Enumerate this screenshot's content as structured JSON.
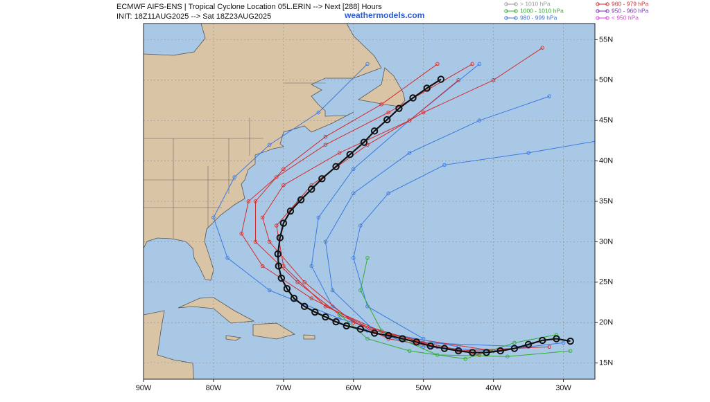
{
  "header": {
    "title": "ECMWF AIFS-ENS | Tropical Cyclone Location 05L.ERIN --> Next [288] Hours",
    "init": "INIT: 18Z11AUG2025 --> Sat 18Z23AUG2025",
    "site": "weathermodels.com"
  },
  "legend": [
    {
      "label": "> 1010 hPa",
      "color": "#9a9a9a"
    },
    {
      "label": "1000 - 1010 hPa",
      "color": "#2fae2f"
    },
    {
      "label": "980 - 999 hPa",
      "color": "#3a78e0"
    },
    {
      "label": "960 - 979 hPa",
      "color": "#d42a2a"
    },
    {
      "label": "950 - 960 hPa",
      "color": "#7a2fb8"
    },
    {
      "label": "< 950 hPa",
      "color": "#e040e0"
    }
  ],
  "map": {
    "xlim": [
      -90,
      -25.5
    ],
    "ylim": [
      13,
      57
    ],
    "grid": true,
    "xticks": [
      {
        "value": -90,
        "label": "90W"
      },
      {
        "value": -80,
        "label": "80W"
      },
      {
        "value": -70,
        "label": "70W"
      },
      {
        "value": -60,
        "label": "60W"
      },
      {
        "value": -50,
        "label": "50W"
      },
      {
        "value": -40,
        "label": "40W"
      },
      {
        "value": -30,
        "label": "30W"
      }
    ],
    "yticks": [
      {
        "value": 15,
        "label": "15N"
      },
      {
        "value": 20,
        "label": "20N"
      },
      {
        "value": 25,
        "label": "25N"
      },
      {
        "value": 30,
        "label": "30N"
      },
      {
        "value": 35,
        "label": "35N"
      },
      {
        "value": 40,
        "label": "40N"
      },
      {
        "value": 45,
        "label": "45N"
      },
      {
        "value": 50,
        "label": "50N"
      },
      {
        "value": 55,
        "label": "55N"
      }
    ],
    "members": [
      {
        "color": "#3a78e0",
        "lon": [
          -30,
          -40,
          -50,
          -58,
          -63,
          -66,
          -65,
          -60,
          -52,
          -42
        ],
        "lat": [
          17.5,
          16.5,
          17,
          19,
          22,
          27,
          33,
          39,
          45,
          52
        ]
      },
      {
        "color": "#d42a2a",
        "lon": [
          -32,
          -45,
          -55,
          -62,
          -68,
          -74,
          -74,
          -70,
          -64,
          -56,
          -48
        ],
        "lat": [
          17,
          16.5,
          18,
          21,
          25,
          30,
          35,
          39,
          43,
          47,
          52
        ]
      },
      {
        "color": "#3a78e0",
        "lon": [
          -35,
          -50,
          -62,
          -72,
          -78,
          -80,
          -77,
          -72,
          -65,
          -58
        ],
        "lat": [
          17,
          17.5,
          20.5,
          24,
          28,
          33,
          38,
          42,
          46,
          52
        ]
      },
      {
        "color": "#d42a2a",
        "lon": [
          -40,
          -55,
          -64,
          -70,
          -71,
          -66,
          -58,
          -50,
          -40,
          -33
        ],
        "lat": [
          16.5,
          18.5,
          22,
          27,
          32,
          37,
          42,
          46,
          50,
          54
        ]
      },
      {
        "color": "#3a78e0",
        "lon": [
          -45,
          -57,
          -63,
          -64,
          -60,
          -52,
          -42,
          -32
        ],
        "lat": [
          17,
          19,
          24,
          30,
          36,
          41,
          45,
          48
        ]
      },
      {
        "color": "#3a78e0",
        "lon": [
          -50,
          -58,
          -60,
          -59,
          -55,
          -47,
          -35,
          -25
        ],
        "lat": [
          18,
          22,
          28,
          32,
          36,
          39.5,
          41,
          42.5
        ]
      },
      {
        "color": "#2fae2f",
        "lon": [
          -29,
          -38,
          -48,
          -56,
          -59,
          -58
        ],
        "lat": [
          16.5,
          15.8,
          16,
          19,
          24,
          28
        ]
      },
      {
        "color": "#d42a2a",
        "lon": [
          -42,
          -57,
          -66,
          -73,
          -76,
          -75,
          -71,
          -64,
          -55,
          -43
        ],
        "lat": [
          16,
          19,
          23,
          27,
          31,
          35,
          38,
          42,
          46,
          52
        ]
      },
      {
        "color": "#d42a2a",
        "lon": [
          -48,
          -60,
          -67,
          -72,
          -73,
          -70,
          -62,
          -52,
          -45
        ],
        "lat": [
          17,
          20,
          25,
          30,
          33,
          37,
          41,
          45,
          50
        ]
      },
      {
        "color": "#2fae2f",
        "lon": [
          -31,
          -37,
          -44,
          -52,
          -58,
          -62
        ],
        "lat": [
          18.5,
          17.5,
          15.5,
          16.5,
          18,
          21
        ]
      }
    ],
    "mean_track": {
      "color": "#111111",
      "lon": [
        -29,
        -31,
        -33,
        -35,
        -37,
        -39,
        -41,
        -43,
        -45,
        -47,
        -49,
        -51,
        -53,
        -55,
        -57,
        -59,
        -61,
        -62.5,
        -64,
        -65.5,
        -67,
        -68.5,
        -69.5,
        -70.3,
        -70.7,
        -70.8,
        -70.5,
        -70,
        -69,
        -67.5,
        -66,
        -64.5,
        -62.5,
        -60.5,
        -58.5,
        -57,
        -55.2,
        -53.5,
        -51.5,
        -49.5,
        -47.5
      ],
      "lat": [
        17.7,
        18,
        17.8,
        17.3,
        16.8,
        16.5,
        16.3,
        16.3,
        16.5,
        16.8,
        17.1,
        17.6,
        18,
        18.4,
        18.7,
        19.2,
        19.6,
        20.1,
        20.7,
        21.3,
        22,
        23,
        24.2,
        25.5,
        27,
        28.5,
        30.5,
        32.3,
        33.8,
        35.2,
        36.5,
        37.8,
        39.3,
        40.8,
        42.3,
        43.7,
        45.1,
        46.5,
        47.8,
        49,
        50.1
      ]
    }
  }
}
